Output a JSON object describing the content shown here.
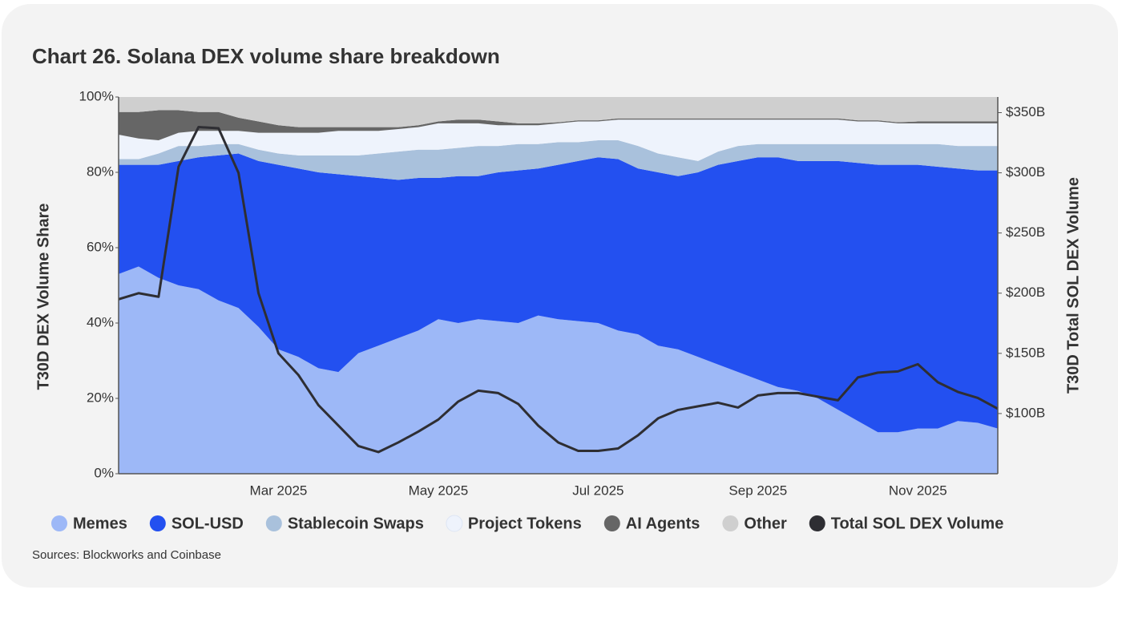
{
  "chart_data": {
    "type": "area",
    "stacked": true,
    "title": "Chart 26. Solana DEX volume share breakdown",
    "source": "Sources: Blockworks and Coinbase",
    "ylabel": "T30D DEX Volume Share",
    "y2label": "T30D Total SOL DEX Volume",
    "categories": [
      null,
      null,
      null,
      null,
      null,
      null,
      null,
      null,
      "Mar 2025",
      null,
      null,
      null,
      null,
      null,
      null,
      null,
      "May 2025",
      null,
      null,
      null,
      null,
      null,
      null,
      null,
      "Jul 2025",
      null,
      null,
      null,
      null,
      null,
      null,
      null,
      "Sep 2025",
      null,
      null,
      null,
      null,
      null,
      null,
      null,
      "Nov 2025",
      null,
      null,
      null,
      null
    ],
    "ylim": [
      0,
      100
    ],
    "yticks": [
      {
        "value": 0,
        "label": "0%"
      },
      {
        "value": 20,
        "label": "20%"
      },
      {
        "value": 40,
        "label": "40%"
      },
      {
        "value": 60,
        "label": "60%"
      },
      {
        "value": 80,
        "label": "80%"
      },
      {
        "value": 100,
        "label": "100%"
      }
    ],
    "y2lim": [
      50,
      363
    ],
    "y2ticks": [
      {
        "value": 100,
        "label": "$100B"
      },
      {
        "value": 150,
        "label": "$150B"
      },
      {
        "value": 200,
        "label": "$200B"
      },
      {
        "value": 250,
        "label": "$250B"
      },
      {
        "value": 300,
        "label": "$300B"
      },
      {
        "value": 350,
        "label": "$350B"
      }
    ],
    "grid": false,
    "series": [
      {
        "name": "Memes",
        "color": "#9db8f7",
        "values": [
          53,
          55,
          52,
          50,
          49,
          46,
          44,
          39,
          33,
          31,
          28,
          27,
          32,
          34,
          36,
          38,
          41,
          40,
          41,
          40.5,
          40,
          42,
          41,
          40.5,
          40,
          38,
          37,
          34,
          33,
          31,
          29,
          27,
          25,
          23,
          22,
          20,
          17,
          14,
          11,
          11,
          12,
          12,
          14,
          13.5,
          12
        ]
      },
      {
        "name": "SOL-USD",
        "color": "#2350f0",
        "values": [
          29,
          27,
          30,
          33,
          35,
          38.5,
          41,
          44,
          49,
          50,
          52,
          52.5,
          47,
          44.5,
          42,
          40.5,
          37.5,
          39,
          38,
          39.5,
          40.5,
          39,
          41,
          42.5,
          44,
          45.5,
          44,
          46,
          46,
          49,
          53,
          56,
          59,
          61,
          61,
          63,
          66,
          68.5,
          71,
          71,
          70,
          69.5,
          67,
          67,
          68.5
        ]
      },
      {
        "name": "Stablecoin Swaps",
        "color": "#a9c1dc",
        "values": [
          1.5,
          1.5,
          3,
          4,
          3,
          3,
          2.5,
          3,
          3,
          3.5,
          4.5,
          5,
          5.5,
          6.5,
          7.5,
          7.5,
          7.5,
          7.5,
          8,
          7,
          7,
          6.5,
          6,
          5,
          4.5,
          5,
          6,
          5,
          5,
          3,
          3.5,
          4,
          3.5,
          3.5,
          4.5,
          4.5,
          4.5,
          5,
          5.5,
          5.5,
          5.5,
          6,
          6,
          6.5,
          6.5
        ]
      },
      {
        "name": "Project Tokens",
        "color": "#eef3fc",
        "values": [
          6.5,
          5.5,
          3.5,
          3.5,
          4,
          3.5,
          3.5,
          4.5,
          5.5,
          6,
          6,
          6.5,
          6.5,
          6,
          6,
          6,
          7,
          6.5,
          6,
          5.5,
          5,
          5,
          5,
          5.5,
          5,
          5.5,
          7,
          9,
          10,
          11,
          8.5,
          7,
          6.5,
          6.5,
          6.5,
          6.5,
          6.5,
          6,
          6,
          5.5,
          5.5,
          5.5,
          6,
          6,
          6
        ]
      },
      {
        "name": "AI Agents",
        "color": "#666666",
        "values": [
          6,
          7,
          8,
          6,
          5,
          5,
          3.5,
          3,
          2,
          1.5,
          1.5,
          1,
          1,
          1,
          0.5,
          0.5,
          0.5,
          1,
          1,
          1,
          0.5,
          0.5,
          0.3,
          0.3,
          0.3,
          0.3,
          0.3,
          0.3,
          0.3,
          0.3,
          0.3,
          0.3,
          0.3,
          0.3,
          0.3,
          0.3,
          0.3,
          0.3,
          0.3,
          0.3,
          0.5,
          0.5,
          0.5,
          0.5,
          0.5
        ]
      },
      {
        "name": "Other",
        "color": "#cfcfcf",
        "values": [
          4,
          4,
          3.5,
          3.5,
          4,
          4,
          5.5,
          6.5,
          7.5,
          8,
          8,
          8,
          8,
          8,
          8,
          7.5,
          6.5,
          6,
          6,
          6.5,
          7,
          7,
          6.7,
          6.2,
          6.2,
          5.7,
          5.7,
          5.7,
          5.7,
          5.7,
          5.7,
          5.7,
          5.7,
          5.7,
          5.7,
          5.7,
          5.7,
          6.2,
          6.2,
          6.7,
          6.5,
          6.5,
          6.5,
          6.5,
          6.5
        ]
      },
      {
        "name": "Total SOL DEX Volume",
        "color": "#2e2e33",
        "axis": "y2",
        "values": [
          195,
          200,
          197,
          305,
          338,
          337,
          300,
          200,
          150,
          132,
          107,
          90,
          73,
          68,
          76,
          85,
          95,
          110,
          119,
          117,
          108,
          90,
          76,
          69,
          69,
          71,
          82,
          96,
          103,
          106,
          109,
          105,
          115,
          117,
          117,
          114,
          111,
          130,
          134,
          135,
          141,
          126,
          118,
          113,
          104
        ]
      }
    ]
  }
}
